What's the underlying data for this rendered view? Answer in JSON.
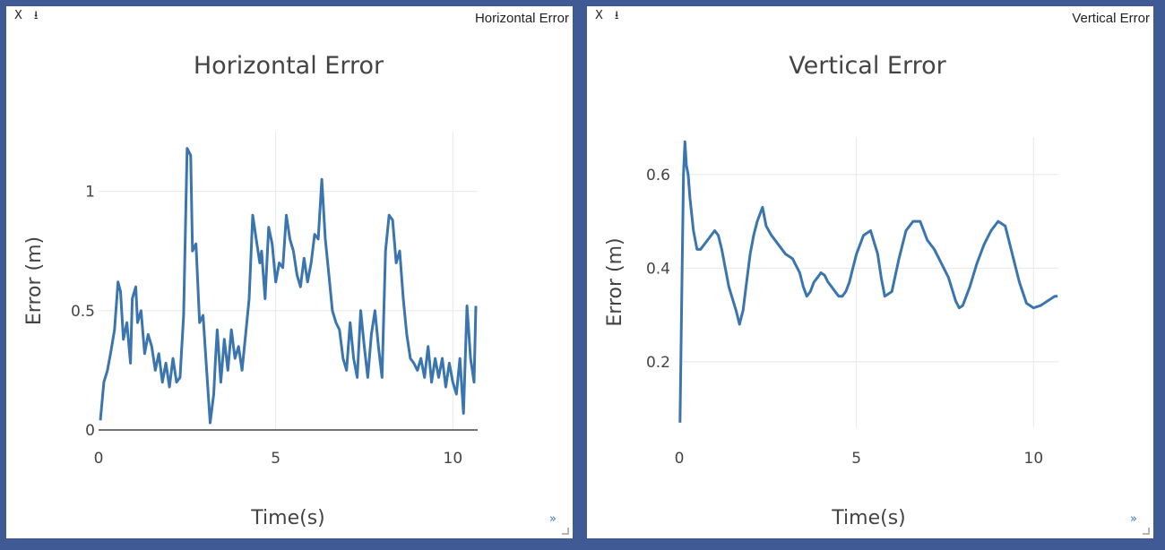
{
  "controls": {
    "close_label": "X",
    "download_label": "⭳"
  },
  "panels": [
    {
      "label": "Horizontal Error",
      "expand_label": "»"
    },
    {
      "label": "Vertical Error",
      "expand_label": "»"
    }
  ],
  "series_color": "#3a75af",
  "chart_data": [
    {
      "type": "line",
      "title": "Horizontal Error",
      "xlabel": "Time(s)",
      "ylabel": "Error (m)",
      "xlim": [
        0,
        10.7
      ],
      "ylim": [
        0,
        1.25
      ],
      "xticks": [
        0,
        5,
        10
      ],
      "yticks": [
        0,
        0.5,
        1
      ],
      "ytick_labels": [
        "0",
        "0.5",
        "1"
      ],
      "grid": true,
      "series": [
        {
          "x": [
            0.05,
            0.15,
            0.25,
            0.35,
            0.45,
            0.55,
            0.62,
            0.7,
            0.8,
            0.9,
            0.95,
            1.05,
            1.1,
            1.2,
            1.3,
            1.4,
            1.5,
            1.6,
            1.7,
            1.8,
            1.9,
            2.0,
            2.1,
            2.2,
            2.3,
            2.4,
            2.5,
            2.6,
            2.65,
            2.75,
            2.85,
            2.95,
            3.05,
            3.15,
            3.25,
            3.3,
            3.35,
            3.45,
            3.55,
            3.65,
            3.75,
            3.85,
            3.95,
            4.05,
            4.15,
            4.25,
            4.35,
            4.45,
            4.55,
            4.6,
            4.7,
            4.8,
            4.9,
            5.0,
            5.1,
            5.2,
            5.3,
            5.4,
            5.5,
            5.6,
            5.7,
            5.8,
            5.9,
            6.0,
            6.1,
            6.2,
            6.3,
            6.4,
            6.5,
            6.6,
            6.7,
            6.8,
            6.9,
            7.0,
            7.1,
            7.2,
            7.3,
            7.4,
            7.5,
            7.6,
            7.7,
            7.8,
            7.9,
            8.0,
            8.1,
            8.2,
            8.3,
            8.4,
            8.5,
            8.6,
            8.7,
            8.8,
            8.9,
            9.0,
            9.1,
            9.2,
            9.3,
            9.4,
            9.5,
            9.6,
            9.7,
            9.8,
            9.9,
            10.0,
            10.1,
            10.2,
            10.3,
            10.4,
            10.5,
            10.6,
            10.65
          ],
          "y": [
            0.04,
            0.2,
            0.25,
            0.33,
            0.42,
            0.62,
            0.58,
            0.38,
            0.45,
            0.28,
            0.55,
            0.6,
            0.45,
            0.5,
            0.32,
            0.4,
            0.35,
            0.25,
            0.32,
            0.2,
            0.28,
            0.18,
            0.3,
            0.2,
            0.22,
            0.48,
            1.18,
            1.15,
            0.75,
            0.78,
            0.45,
            0.48,
            0.25,
            0.03,
            0.15,
            0.3,
            0.42,
            0.2,
            0.38,
            0.25,
            0.42,
            0.3,
            0.35,
            0.25,
            0.4,
            0.55,
            0.9,
            0.8,
            0.7,
            0.75,
            0.55,
            0.85,
            0.78,
            0.62,
            0.7,
            0.68,
            0.9,
            0.8,
            0.75,
            0.65,
            0.6,
            0.72,
            0.62,
            0.7,
            0.82,
            0.8,
            1.05,
            0.8,
            0.65,
            0.5,
            0.45,
            0.42,
            0.3,
            0.25,
            0.45,
            0.3,
            0.22,
            0.5,
            0.35,
            0.22,
            0.4,
            0.5,
            0.35,
            0.22,
            0.75,
            0.9,
            0.88,
            0.7,
            0.75,
            0.55,
            0.4,
            0.3,
            0.28,
            0.25,
            0.3,
            0.22,
            0.35,
            0.2,
            0.3,
            0.22,
            0.3,
            0.18,
            0.28,
            0.2,
            0.15,
            0.3,
            0.07,
            0.52,
            0.3,
            0.2,
            0.52
          ]
        }
      ]
    },
    {
      "type": "line",
      "title": "Vertical Error",
      "xlabel": "Time(s)",
      "ylabel": "Error (m)",
      "xlim": [
        0,
        10.7
      ],
      "ylim": [
        0.06,
        0.68
      ],
      "xticks": [
        0,
        5,
        10
      ],
      "yticks": [
        0.2,
        0.4,
        0.6
      ],
      "ytick_labels": [
        "0.2",
        "0.4",
        "0.6"
      ],
      "grid": true,
      "series": [
        {
          "x": [
            0.02,
            0.08,
            0.12,
            0.16,
            0.2,
            0.25,
            0.3,
            0.4,
            0.5,
            0.6,
            0.8,
            1.0,
            1.1,
            1.2,
            1.4,
            1.6,
            1.7,
            1.8,
            1.9,
            2.0,
            2.1,
            2.2,
            2.3,
            2.35,
            2.45,
            2.6,
            2.8,
            3.0,
            3.2,
            3.4,
            3.5,
            3.6,
            3.7,
            3.8,
            3.9,
            4.0,
            4.1,
            4.2,
            4.3,
            4.4,
            4.5,
            4.6,
            4.7,
            4.8,
            4.9,
            5.0,
            5.2,
            5.4,
            5.6,
            5.7,
            5.8,
            6.0,
            6.2,
            6.4,
            6.6,
            6.8,
            7.0,
            7.2,
            7.4,
            7.6,
            7.8,
            7.9,
            8.0,
            8.2,
            8.4,
            8.6,
            8.8,
            9.0,
            9.2,
            9.4,
            9.6,
            9.8,
            10.0,
            10.2,
            10.4,
            10.6,
            10.68
          ],
          "y": [
            0.07,
            0.4,
            0.6,
            0.67,
            0.62,
            0.6,
            0.55,
            0.48,
            0.44,
            0.44,
            0.46,
            0.48,
            0.47,
            0.44,
            0.36,
            0.31,
            0.28,
            0.31,
            0.37,
            0.43,
            0.47,
            0.5,
            0.52,
            0.53,
            0.49,
            0.47,
            0.45,
            0.43,
            0.42,
            0.39,
            0.36,
            0.34,
            0.35,
            0.37,
            0.38,
            0.39,
            0.385,
            0.37,
            0.36,
            0.35,
            0.34,
            0.34,
            0.35,
            0.37,
            0.4,
            0.43,
            0.47,
            0.48,
            0.43,
            0.38,
            0.34,
            0.35,
            0.42,
            0.48,
            0.5,
            0.5,
            0.46,
            0.44,
            0.41,
            0.38,
            0.33,
            0.315,
            0.32,
            0.36,
            0.41,
            0.45,
            0.48,
            0.5,
            0.49,
            0.43,
            0.37,
            0.325,
            0.315,
            0.32,
            0.33,
            0.34,
            0.34
          ]
        }
      ]
    }
  ]
}
